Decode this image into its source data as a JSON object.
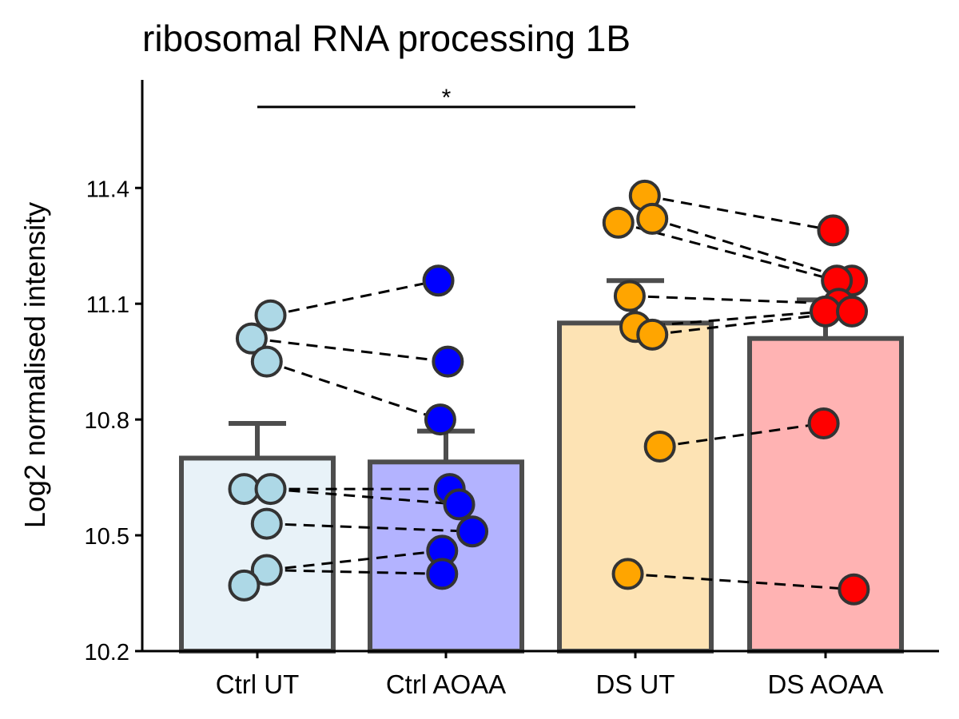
{
  "chart_data": {
    "type": "bar",
    "title": "ribosomal RNA processing 1B",
    "xlabel": "",
    "ylabel": "Log2 normalised intensity",
    "ylim": [
      10.2,
      11.68
    ],
    "yticks": [
      10.2,
      10.5,
      10.8,
      11.1,
      11.4
    ],
    "grid": false,
    "categories": [
      "Ctrl UT",
      "Ctrl AOAA",
      "DS UT",
      "DS AOAA"
    ],
    "means": [
      10.7,
      10.69,
      11.05,
      11.01
    ],
    "error_upper": [
      10.79,
      10.77,
      11.16,
      11.11
    ],
    "fill_colors": [
      "#e8f2f8",
      "#b3b3ff",
      "#fde3b4",
      "#ffb3b3"
    ],
    "point_colors": [
      "#add8e6",
      "#0000ff",
      "#ffa500",
      "#ff0000"
    ],
    "points": [
      {
        "values": [
          11.07,
          11.01,
          10.95,
          10.62,
          10.62,
          10.53,
          10.41,
          10.37
        ],
        "jitter": [
          0.07,
          -0.03,
          0.05,
          -0.07,
          0.07,
          0.05,
          0.05,
          -0.07
        ]
      },
      {
        "values": [
          11.16,
          10.95,
          10.8,
          10.62,
          10.58,
          10.51,
          10.46,
          10.4
        ],
        "jitter": [
          -0.04,
          0.01,
          -0.03,
          0.02,
          0.07,
          0.14,
          -0.02,
          -0.02
        ]
      },
      {
        "values": [
          11.38,
          11.32,
          11.31,
          11.12,
          11.04,
          11.02,
          10.73,
          10.4
        ],
        "jitter": [
          0.05,
          0.09,
          -0.09,
          -0.03,
          0.0,
          0.09,
          0.13,
          -0.04
        ]
      },
      {
        "values": [
          11.29,
          11.16,
          11.16,
          11.1,
          11.08,
          11.08,
          10.79,
          10.36
        ],
        "jitter": [
          0.04,
          0.14,
          0.06,
          0.07,
          0.0,
          0.14,
          -0.01,
          0.15
        ]
      }
    ],
    "pairs": [
      {
        "from": [
          0,
          1
        ],
        "to": [
          1,
          1
        ]
      },
      {
        "from": [
          0,
          0
        ],
        "to": [
          1,
          0
        ]
      },
      {
        "from": [
          0,
          2
        ],
        "to": [
          1,
          2
        ]
      },
      {
        "from": [
          0,
          4
        ],
        "to": [
          1,
          4
        ]
      },
      {
        "from": [
          0,
          4
        ],
        "to": [
          1,
          3
        ]
      },
      {
        "from": [
          0,
          5
        ],
        "to": [
          1,
          5
        ]
      },
      {
        "from": [
          0,
          6
        ],
        "to": [
          1,
          6
        ]
      },
      {
        "from": [
          0,
          6
        ],
        "to": [
          1,
          7
        ]
      },
      {
        "from": [
          2,
          0
        ],
        "to": [
          3,
          0
        ]
      },
      {
        "from": [
          2,
          1
        ],
        "to": [
          3,
          1
        ]
      },
      {
        "from": [
          2,
          2
        ],
        "to": [
          3,
          2
        ]
      },
      {
        "from": [
          2,
          3
        ],
        "to": [
          3,
          3
        ]
      },
      {
        "from": [
          2,
          4
        ],
        "to": [
          3,
          4
        ]
      },
      {
        "from": [
          2,
          5
        ],
        "to": [
          3,
          5
        ]
      },
      {
        "from": [
          2,
          6
        ],
        "to": [
          3,
          6
        ]
      },
      {
        "from": [
          2,
          7
        ],
        "to": [
          3,
          7
        ]
      }
    ],
    "significance": {
      "from": 0,
      "to": 2,
      "value": 11.61,
      "label": "*"
    }
  }
}
